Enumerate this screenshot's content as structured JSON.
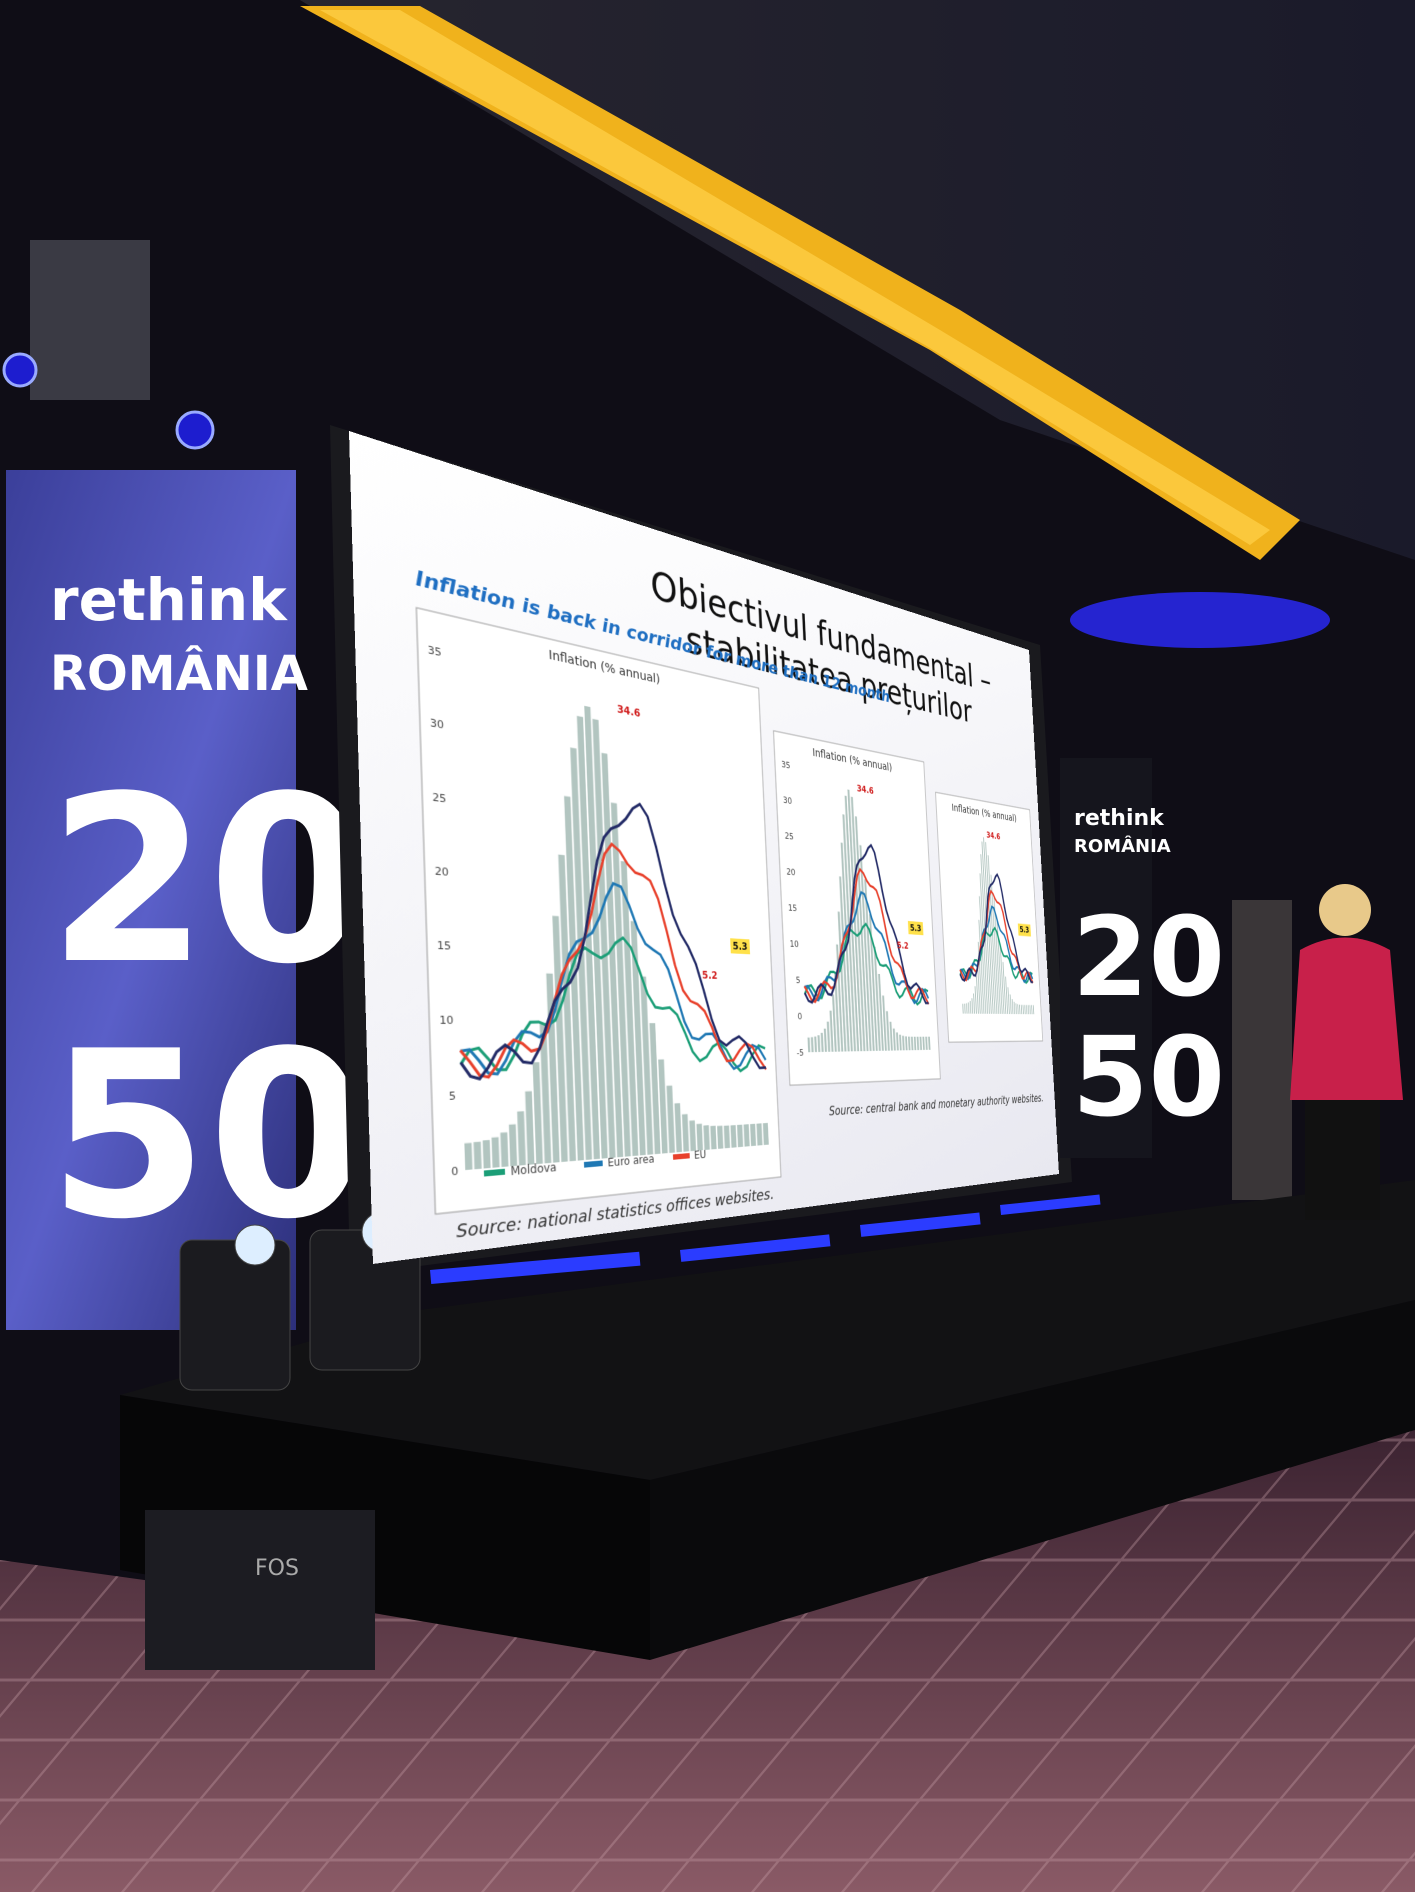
{
  "left_banner": {
    "brand": "rethink",
    "brand_sub": "ROMÂNIA",
    "year_top": "20",
    "year_bottom": "50"
  },
  "right_banner": {
    "brand": "rethink",
    "brand_sub": "ROMÂNIA",
    "year_top": "20",
    "year_bottom": "50"
  },
  "slide": {
    "title": "Obiectivul fundamental – stabilitatea prețurilor",
    "subtitle": "Inflation is back in corridor for more than 12 month",
    "panels": [
      {
        "caption": "Inflation (% annual)",
        "yticks": [
          "35",
          "30",
          "25",
          "20",
          "15",
          "10",
          "5",
          "0"
        ],
        "annotations": [
          "34.6",
          "5.3",
          "5.2"
        ]
      },
      {
        "caption": "Inflation (% annual)",
        "yticks": [
          "35",
          "30",
          "25",
          "20",
          "15",
          "10",
          "5",
          "0",
          "-5"
        ],
        "annotations": [
          "34.6",
          "5.3",
          "5.2"
        ]
      },
      {
        "caption": "Inflation (% annual)",
        "yticks": [],
        "annotations": [
          "34.6",
          "5.3"
        ]
      }
    ],
    "legend": [
      "Moldova",
      "Euro area",
      "EU"
    ],
    "sources": [
      "Source: national statistics offices websites.",
      "Source: central bank and monetary authority websites."
    ]
  },
  "equipment": {
    "fog_machine_label": "FOS"
  }
}
